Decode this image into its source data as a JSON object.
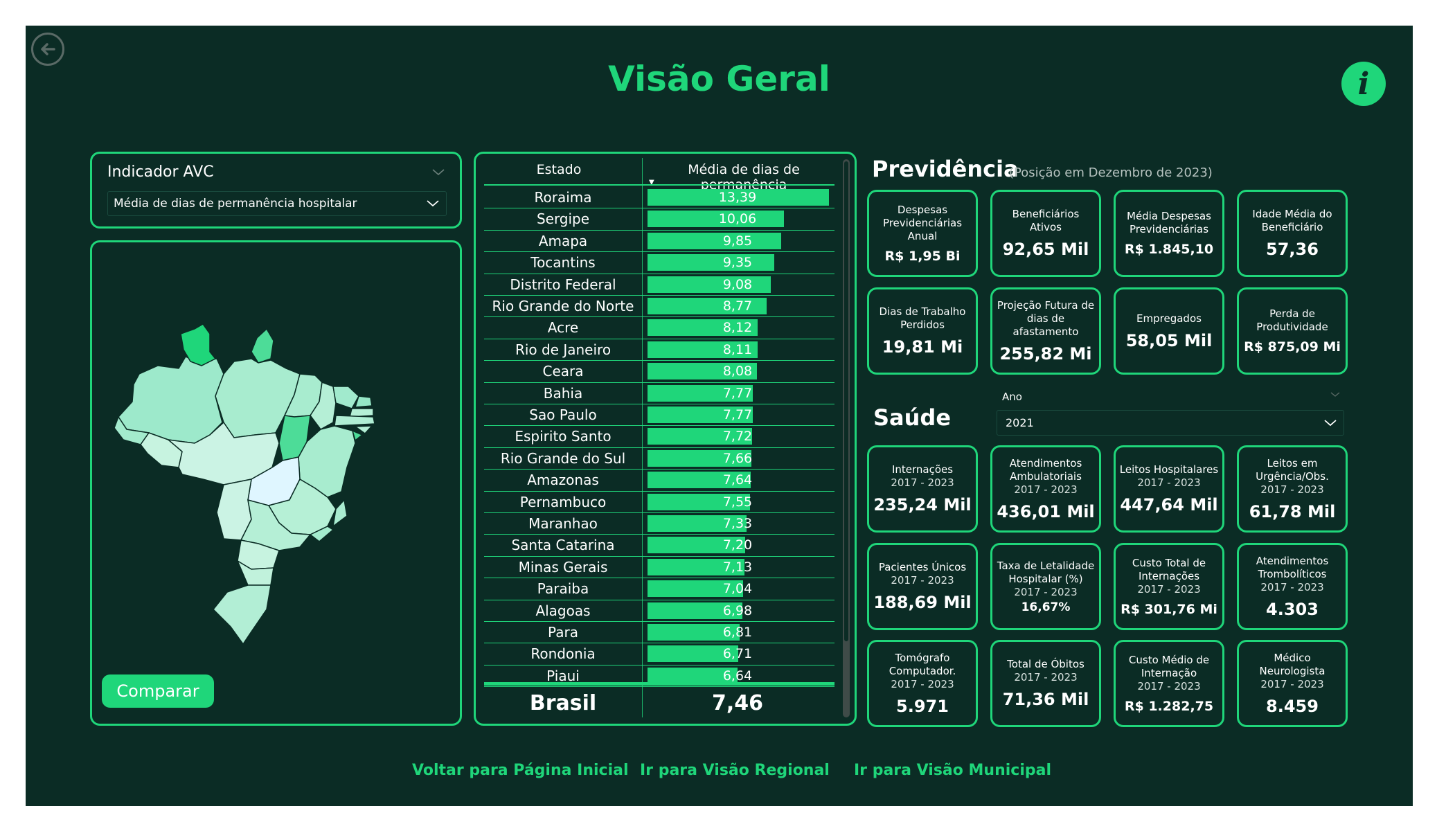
{
  "page": {
    "title": "Visão Geral"
  },
  "filters": {
    "indicator_label": "Indicador AVC",
    "indicator_value": "Média de dias de permanência hospitalar",
    "year_label": "Ano",
    "year_value": "2021"
  },
  "map": {
    "compare_label": "Comparar"
  },
  "table": {
    "col_state": "Estado",
    "col_value": "Média de dias de permanência",
    "rows": [
      {
        "state": "Roraima",
        "value": "13,39",
        "num": 13.39
      },
      {
        "state": "Sergipe",
        "value": "10,06",
        "num": 10.06
      },
      {
        "state": "Amapa",
        "value": "9,85",
        "num": 9.85
      },
      {
        "state": "Tocantins",
        "value": "9,35",
        "num": 9.35
      },
      {
        "state": "Distrito Federal",
        "value": "9,08",
        "num": 9.08
      },
      {
        "state": "Rio Grande do Norte",
        "value": "8,77",
        "num": 8.77
      },
      {
        "state": "Acre",
        "value": "8,12",
        "num": 8.12
      },
      {
        "state": "Rio de Janeiro",
        "value": "8,11",
        "num": 8.11
      },
      {
        "state": "Ceara",
        "value": "8,08",
        "num": 8.08
      },
      {
        "state": "Bahia",
        "value": "7,77",
        "num": 7.77
      },
      {
        "state": "Sao Paulo",
        "value": "7,77",
        "num": 7.77
      },
      {
        "state": "Espirito Santo",
        "value": "7,72",
        "num": 7.72
      },
      {
        "state": "Rio Grande do Sul",
        "value": "7,66",
        "num": 7.66
      },
      {
        "state": "Amazonas",
        "value": "7,64",
        "num": 7.64
      },
      {
        "state": "Pernambuco",
        "value": "7,55",
        "num": 7.55
      },
      {
        "state": "Maranhao",
        "value": "7,33",
        "num": 7.33
      },
      {
        "state": "Santa Catarina",
        "value": "7,20",
        "num": 7.2
      },
      {
        "state": "Minas Gerais",
        "value": "7,13",
        "num": 7.13
      },
      {
        "state": "Paraiba",
        "value": "7,04",
        "num": 7.04
      },
      {
        "state": "Alagoas",
        "value": "6,98",
        "num": 6.98
      },
      {
        "state": "Para",
        "value": "6,81",
        "num": 6.81
      },
      {
        "state": "Rondonia",
        "value": "6,71",
        "num": 6.71
      },
      {
        "state": "Piaui",
        "value": "6,64",
        "num": 6.64
      }
    ],
    "total_label": "Brasil",
    "total_value": "7,46"
  },
  "previdencia": {
    "title": "Previdência",
    "subtitle": "(Posição em Dezembro de 2023)",
    "cards": [
      {
        "label": "Despesas Previdenciárias Anual",
        "value": "R$ 1,95 Bi"
      },
      {
        "label": "Beneficiários Ativos",
        "value": "92,65 Mil"
      },
      {
        "label": "Média Despesas Previdenciárias",
        "value": "R$ 1.845,10"
      },
      {
        "label": "Idade Média do Beneficiário",
        "value": "57,36"
      },
      {
        "label": "Dias de Trabalho Perdidos",
        "value": "19,81 Mi"
      },
      {
        "label": "Projeção Futura de dias de afastamento",
        "value": "255,82 Mi"
      },
      {
        "label": "Empregados",
        "value": "58,05 Mil"
      },
      {
        "label": "Perda de Produtividade",
        "value": "R$ 875,09 Mi"
      }
    ]
  },
  "saude": {
    "title": "Saúde",
    "cards": [
      {
        "label": "Internações",
        "period": "2017 - 2023",
        "value": "235,24 Mil"
      },
      {
        "label": "Atendimentos Ambulatoriais",
        "period": "2017 - 2023",
        "value": "436,01 Mil"
      },
      {
        "label": "Leitos Hospitalares",
        "period": "2017 - 2023",
        "value": "447,64 Mil"
      },
      {
        "label": "Leitos em Urgência/Obs.",
        "period": "2017 - 2023",
        "value": "61,78 Mil"
      },
      {
        "label": "Pacientes Únicos",
        "period": "2017 - 2023",
        "value": "188,69 Mil"
      },
      {
        "label": "Taxa de Letalidade Hospitalar (%)",
        "period": "2017 - 2023",
        "value": "16,67%"
      },
      {
        "label": "Custo Total de Internações",
        "period": "2017 - 2023",
        "value": "R$ 301,76 Mi"
      },
      {
        "label": "Atendimentos Trombolíticos",
        "period": "2017 - 2023",
        "value": "4.303"
      },
      {
        "label": "Tomógrafo Computador.",
        "period": "2017 - 2023",
        "value": "5.971"
      },
      {
        "label": "Total de Óbitos",
        "period": "2017 - 2023",
        "value": "71,36 Mil"
      },
      {
        "label": "Custo Médio de Internação",
        "period": "2017 - 2023",
        "value": "R$ 1.282,75"
      },
      {
        "label": "Médico Neurologista",
        "period": "2017 - 2023",
        "value": "8.459"
      }
    ]
  },
  "footer": {
    "home": "Voltar para Página Inicial",
    "regional": "Ir para Visão Regional",
    "municipal": "Ir para Visão Municipal"
  },
  "colors": {
    "background": "#0b2c25",
    "accent": "#1fd67a"
  },
  "icons": {
    "back": "back-arrow-circle-icon",
    "info": "info-icon",
    "dropdown": "chevron-down-icon"
  }
}
